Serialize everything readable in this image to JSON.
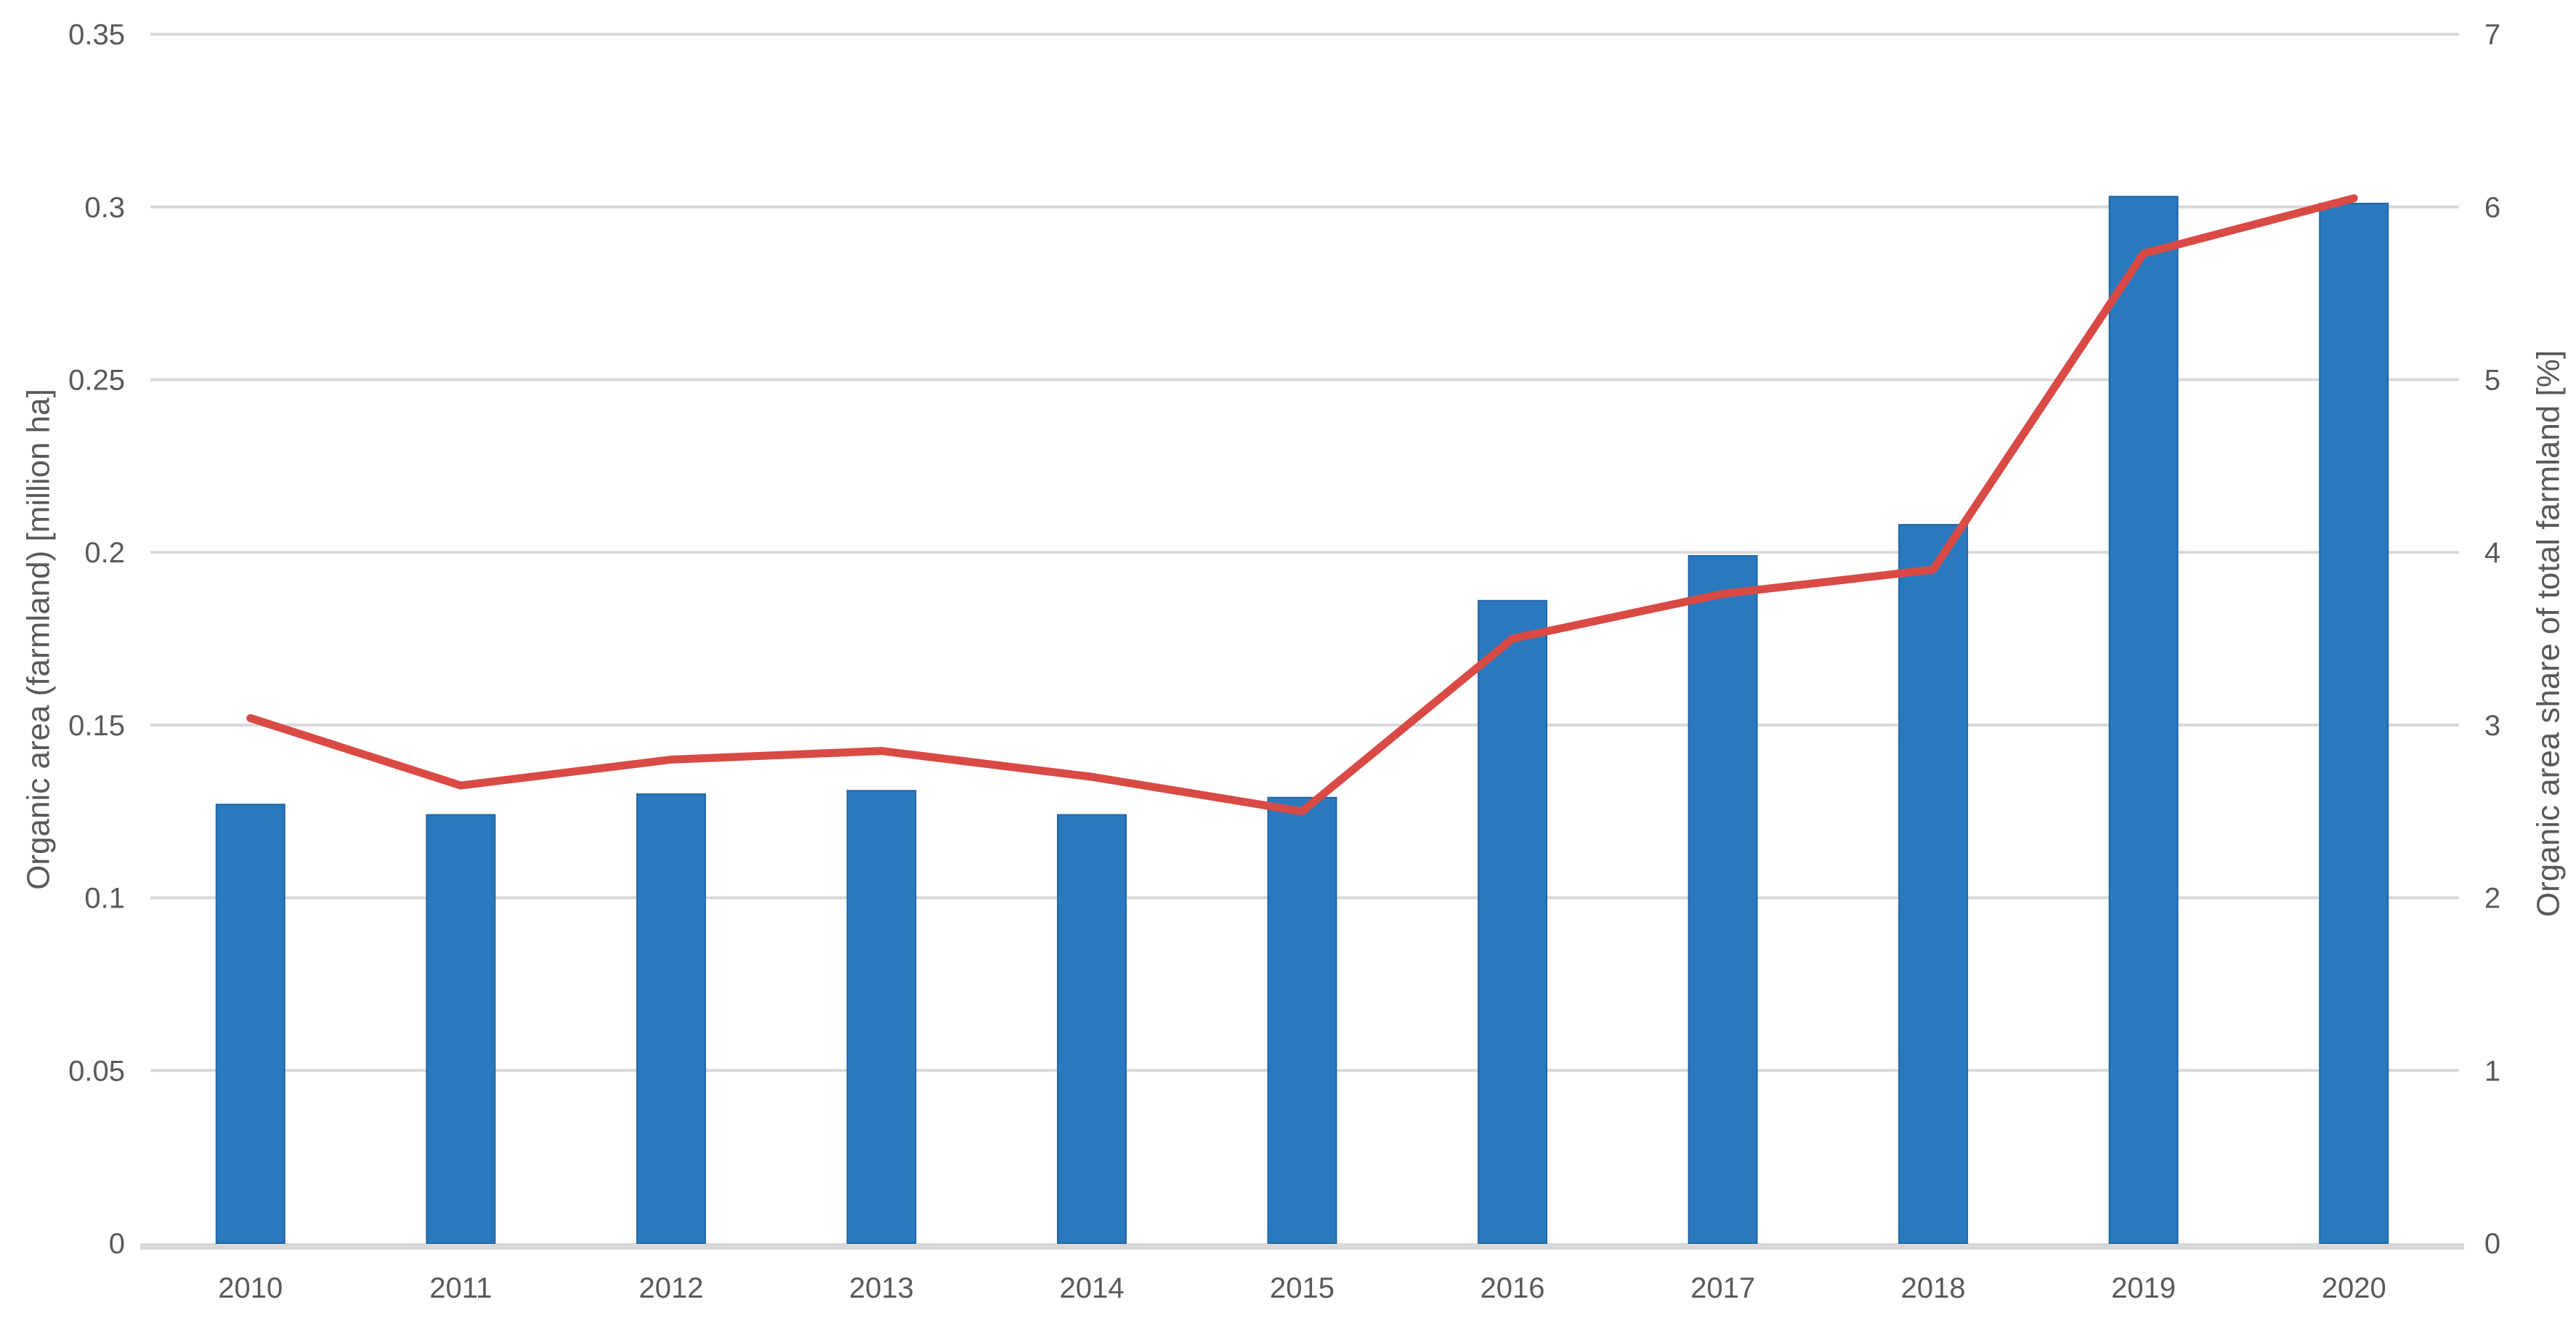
{
  "chart_data": {
    "type": "combo",
    "title": "",
    "categories": [
      "2010",
      "2011",
      "2012",
      "2013",
      "2014",
      "2015",
      "2016",
      "2017",
      "2018",
      "2019",
      "2020"
    ],
    "series": [
      {
        "name": "Organic area (farmland) [million ha]",
        "type": "bar",
        "axis": "left",
        "values": [
          0.127,
          0.124,
          0.13,
          0.131,
          0.124,
          0.129,
          0.186,
          0.199,
          0.208,
          0.303,
          0.301
        ]
      },
      {
        "name": "Organic area share of total farmland [%]",
        "type": "line",
        "axis": "right",
        "values": [
          3.04,
          2.65,
          2.8,
          2.85,
          2.7,
          2.5,
          3.5,
          3.76,
          3.9,
          5.73,
          6.05
        ]
      }
    ],
    "left_axis": {
      "title": "Organic area (farmland) [million ha]",
      "min": 0,
      "max": 0.35,
      "step": 0.05,
      "tick_labels": [
        "0",
        "0.05",
        "0.1",
        "0.15",
        "0.2",
        "0.25",
        "0.3",
        "0.35"
      ]
    },
    "right_axis": {
      "title": "Organic area share of total farmland [%]",
      "min": 0,
      "max": 7,
      "step": 1,
      "tick_labels": [
        "0",
        "1",
        "2",
        "3",
        "4",
        "5",
        "6",
        "7"
      ]
    },
    "grid": true,
    "legend": "none",
    "colors": {
      "bar_fill": "#2A79BE",
      "bar_border": "#2166A5",
      "line": "#D94A45",
      "gridline": "#D9D9D9",
      "axis_line": "#D8D8D8",
      "text": "#595959",
      "background": "#FFFFFF"
    }
  }
}
